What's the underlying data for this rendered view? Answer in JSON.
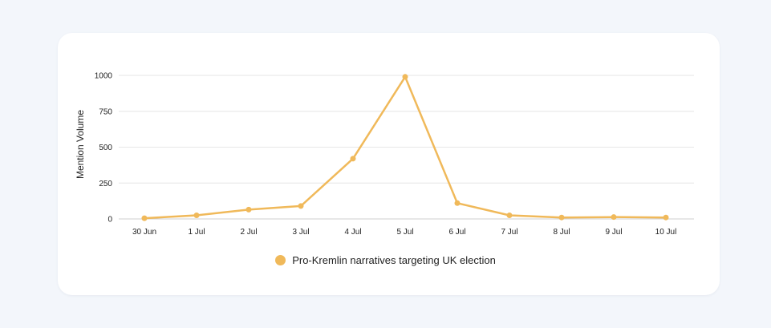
{
  "chart_data": {
    "type": "line",
    "x": [
      "30 Jun",
      "1 Jul",
      "2 Jul",
      "3 Jul",
      "4 Jul",
      "5 Jul",
      "6 Jul",
      "7 Jul",
      "8 Jul",
      "9 Jul",
      "10 Jul"
    ],
    "series": [
      {
        "name": "Pro-Kremlin narratives targeting UK election",
        "values": [
          5,
          25,
          65,
          90,
          420,
          990,
          110,
          25,
          10,
          13,
          10
        ],
        "color": "#f0b95a"
      }
    ],
    "ylabel": "Mention Volume",
    "ylim": [
      0,
      1000
    ],
    "yticks": [
      0,
      250,
      500,
      750,
      1000
    ],
    "grid": true,
    "legend_position": "bottom"
  }
}
